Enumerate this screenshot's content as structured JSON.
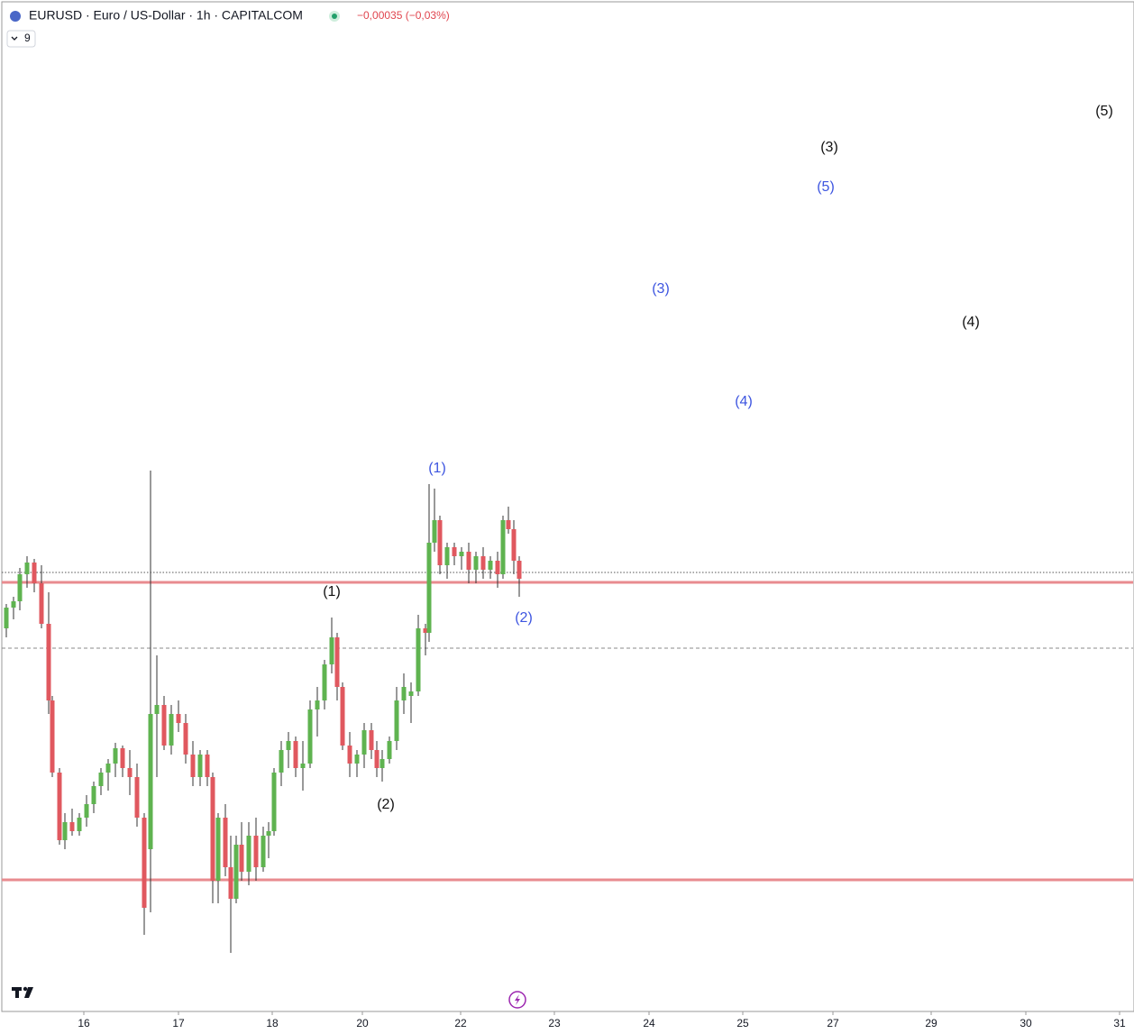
{
  "chart_data": {
    "type": "candlestick",
    "title": "EURUSD · Euro / US-Dollar · 1h · CAPITALCOM",
    "change": "−0,00035 (−0,03%)",
    "indicator_count": "9",
    "up_color": "#5fb350",
    "down_color": "#e0585f",
    "wick_color": "#333333",
    "xlim": [
      0,
      1255
    ],
    "ylim": [
      0,
      1120
    ],
    "xticks": [
      {
        "value": 91,
        "label": "16"
      },
      {
        "value": 196,
        "label": "17"
      },
      {
        "value": 300,
        "label": "18"
      },
      {
        "value": 400,
        "label": "20"
      },
      {
        "value": 509,
        "label": "22"
      },
      {
        "value": 613,
        "label": "23"
      },
      {
        "value": 718,
        "label": "24"
      },
      {
        "value": 822,
        "label": "25"
      },
      {
        "value": 922,
        "label": "27"
      },
      {
        "value": 1031,
        "label": "29"
      },
      {
        "value": 1136,
        "label": "30"
      },
      {
        "value": 1240,
        "label": "31"
      }
    ],
    "x": [
      5,
      13,
      20,
      28,
      36,
      44,
      52,
      56,
      64,
      70,
      78,
      86,
      94,
      102,
      110,
      118,
      126,
      134,
      142,
      150,
      158,
      165,
      172,
      180,
      188,
      196,
      204,
      212,
      220,
      228,
      234,
      240,
      248,
      254,
      260,
      266,
      274,
      282,
      290,
      296,
      302,
      310,
      318,
      326,
      334,
      342,
      350,
      358,
      366,
      372,
      378,
      386,
      394,
      402,
      410,
      416,
      422,
      430,
      438,
      446,
      454,
      462,
      470,
      474,
      480,
      486,
      494,
      502,
      510,
      518,
      526,
      534,
      542,
      550,
      556,
      562,
      568,
      574
    ],
    "open": [
      425,
      448,
      455,
      485,
      498,
      475,
      430,
      345,
      265,
      190,
      210,
      200,
      215,
      230,
      250,
      265,
      275,
      292,
      270,
      260,
      215,
      180,
      330,
      340,
      295,
      330,
      320,
      285,
      260,
      285,
      260,
      145,
      215,
      160,
      125,
      185,
      155,
      195,
      160,
      195,
      200,
      265,
      290,
      300,
      270,
      275,
      335,
      345,
      385,
      415,
      360,
      295,
      275,
      285,
      312,
      290,
      270,
      280,
      300,
      345,
      350,
      355,
      425,
      420,
      520,
      545,
      495,
      515,
      505,
      510,
      490,
      505,
      490,
      500,
      485,
      545,
      535,
      500
    ],
    "high": [
      452,
      460,
      492,
      505,
      502,
      495,
      465,
      350,
      270,
      220,
      225,
      220,
      240,
      255,
      270,
      280,
      298,
      295,
      290,
      275,
      220,
      600,
      395,
      350,
      340,
      345,
      330,
      300,
      290,
      290,
      265,
      220,
      230,
      195,
      195,
      210,
      210,
      215,
      205,
      210,
      270,
      300,
      310,
      305,
      300,
      345,
      360,
      390,
      437,
      420,
      365,
      310,
      290,
      320,
      320,
      300,
      290,
      305,
      360,
      375,
      365,
      440,
      430,
      585,
      580,
      550,
      520,
      520,
      515,
      520,
      510,
      515,
      505,
      510,
      550,
      560,
      545,
      505
    ],
    "low": [
      415,
      435,
      445,
      470,
      465,
      425,
      330,
      260,
      185,
      180,
      195,
      195,
      205,
      220,
      240,
      245,
      260,
      260,
      240,
      205,
      85,
      110,
      260,
      290,
      285,
      310,
      275,
      250,
      250,
      250,
      120,
      120,
      150,
      65,
      120,
      145,
      140,
      145,
      155,
      170,
      195,
      250,
      270,
      260,
      245,
      270,
      305,
      335,
      375,
      345,
      290,
      260,
      260,
      270,
      280,
      260,
      255,
      275,
      290,
      330,
      320,
      350,
      395,
      410,
      510,
      485,
      480,
      495,
      490,
      475,
      475,
      480,
      480,
      470,
      480,
      530,
      485,
      460
    ],
    "close": [
      448,
      455,
      485,
      498,
      475,
      430,
      345,
      265,
      190,
      210,
      200,
      215,
      230,
      250,
      265,
      275,
      292,
      270,
      260,
      215,
      115,
      330,
      340,
      295,
      330,
      320,
      285,
      260,
      285,
      260,
      145,
      215,
      160,
      125,
      185,
      155,
      195,
      160,
      195,
      200,
      265,
      290,
      300,
      270,
      275,
      335,
      345,
      385,
      415,
      360,
      295,
      275,
      285,
      312,
      290,
      270,
      280,
      300,
      345,
      360,
      355,
      425,
      420,
      520,
      545,
      495,
      515,
      505,
      510,
      490,
      505,
      490,
      500,
      485,
      545,
      535,
      500,
      480
    ],
    "levels": [
      {
        "value": 476,
        "color": "#e88b8f",
        "style": "solid"
      },
      {
        "value": 146,
        "color": "#e88b8f",
        "style": "solid"
      },
      {
        "value": 487,
        "color": "#555555",
        "style": "dotted"
      },
      {
        "value": 403,
        "color": "#888888",
        "style": "dashed"
      }
    ],
    "annotations": [
      {
        "text": "(1)",
        "x": 366,
        "y": 465,
        "color": "#111111"
      },
      {
        "text": "(2)",
        "x": 426,
        "y": 229,
        "color": "#111111"
      },
      {
        "text": "(3)",
        "x": 918,
        "y": 958,
        "color": "#111111"
      },
      {
        "text": "(4)",
        "x": 1075,
        "y": 764,
        "color": "#111111"
      },
      {
        "text": "(5)",
        "x": 1223,
        "y": 998,
        "color": "#111111"
      },
      {
        "text": "(1)",
        "x": 483,
        "y": 602,
        "color": "#3d55e0"
      },
      {
        "text": "(2)",
        "x": 579,
        "y": 436,
        "color": "#3d55e0"
      },
      {
        "text": "(3)",
        "x": 731,
        "y": 801,
        "color": "#3d55e0"
      },
      {
        "text": "(4)",
        "x": 823,
        "y": 676,
        "color": "#3d55e0"
      },
      {
        "text": "(5)",
        "x": 914,
        "y": 914,
        "color": "#3d55e0"
      }
    ]
  }
}
